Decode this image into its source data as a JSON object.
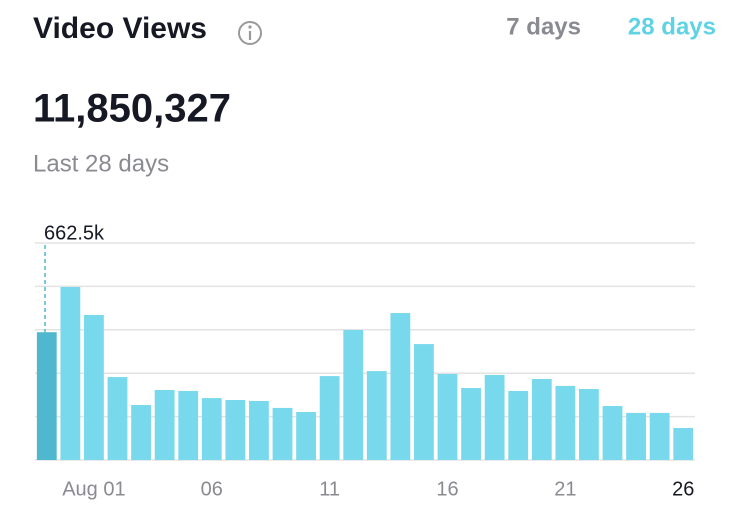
{
  "header": {
    "title": "Video Views",
    "tabs": [
      "7 days",
      "28 days"
    ],
    "total": "11,850,327",
    "subtitle": "Last 28 days"
  },
  "chart_data": {
    "type": "bar",
    "categories": [
      null,
      null,
      "Aug 01",
      null,
      null,
      null,
      null,
      "06",
      null,
      null,
      null,
      null,
      "11",
      null,
      null,
      null,
      null,
      "16",
      null,
      null,
      null,
      null,
      "21",
      null,
      null,
      null,
      null,
      "26"
    ],
    "values": [
      662500,
      897000,
      752000,
      430000,
      285000,
      363000,
      358000,
      321000,
      311000,
      306000,
      270000,
      249000,
      435000,
      674000,
      461000,
      762000,
      601000,
      446000,
      373000,
      441000,
      358000,
      420000,
      384000,
      368000,
      280000,
      244000,
      244000,
      166000
    ],
    "value_labels": [
      "662.5k",
      null,
      null,
      null,
      null,
      null,
      null,
      null,
      null,
      null,
      null,
      null,
      null,
      null,
      null,
      null,
      null,
      null,
      null,
      null,
      null,
      null,
      null,
      null,
      null,
      null,
      null,
      null
    ],
    "color": "#79d9ec",
    "highlight_color": "#4fb8cf",
    "highlight_index": 0,
    "ylim": [
      0,
      1125000
    ],
    "yticks": [
      0,
      225000,
      450000,
      675000,
      900000,
      1125000
    ],
    "grid": true
  }
}
